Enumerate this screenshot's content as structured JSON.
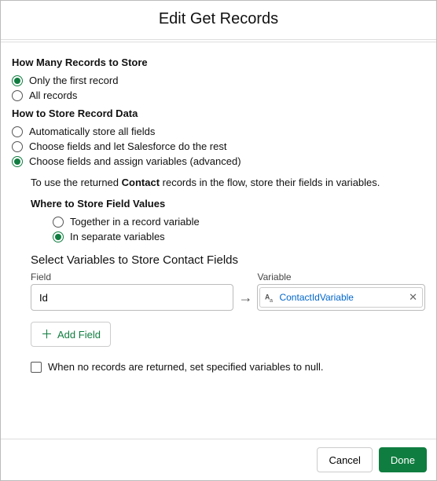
{
  "dialog": {
    "title": "Edit Get Records"
  },
  "howMany": {
    "title": "How Many Records to Store",
    "options": [
      {
        "label": "Only the first record",
        "selected": true
      },
      {
        "label": "All records",
        "selected": false
      }
    ]
  },
  "howStore": {
    "title": "How to Store Record Data",
    "options": [
      {
        "label": "Automatically store all fields",
        "selected": false
      },
      {
        "label": "Choose fields and let Salesforce do the rest",
        "selected": false
      },
      {
        "label": "Choose fields and assign variables (advanced)",
        "selected": true
      }
    ],
    "help_prefix": "To use the returned ",
    "help_object": "Contact",
    "help_suffix": " records in the flow, store their fields in variables."
  },
  "whereStore": {
    "title": "Where to Store Field Values",
    "options": [
      {
        "label": "Together in a record variable",
        "selected": false
      },
      {
        "label": "In separate variables",
        "selected": true
      }
    ]
  },
  "selectVars": {
    "title": "Select Variables to Store Contact Fields",
    "field_label": "Field",
    "variable_label": "Variable",
    "field_value": "Id",
    "variable_value": "ContactIdVariable",
    "add_label": "Add Field"
  },
  "nullCheckbox": {
    "label": "When no records are returned, set specified variables to null.",
    "checked": false
  },
  "footer": {
    "cancel": "Cancel",
    "done": "Done"
  },
  "colors": {
    "accent": "#107d40",
    "link": "#0066cc",
    "border": "#bbbbbb",
    "divider": "#dddddd"
  }
}
